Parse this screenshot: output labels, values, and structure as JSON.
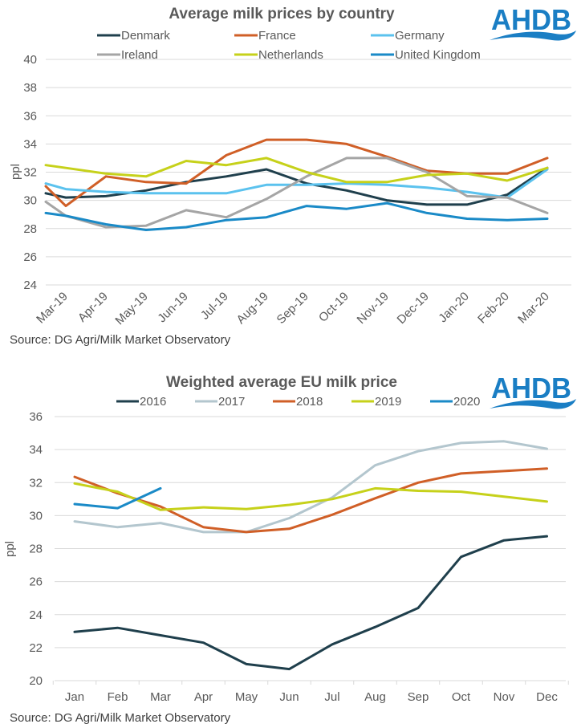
{
  "logo": {
    "text": "AHDB",
    "color": "#1a7ec4"
  },
  "chart_data": [
    {
      "type": "line",
      "title": "Average milk prices by country",
      "xlabel": "",
      "ylabel": "ppl",
      "ylim": [
        24,
        40
      ],
      "yticks": [
        "24",
        "26",
        "28",
        "30",
        "32",
        "34",
        "36",
        "38",
        "40"
      ],
      "grid": true,
      "legend_position": "top",
      "categories": [
        "Mar-19",
        "Apr-19",
        "May-19",
        "Jun-19",
        "Jul-19",
        "Aug-19",
        "Sep-19",
        "Oct-19",
        "Nov-19",
        "Dec-19",
        "Jan-20",
        "Feb-20",
        "Mar-20"
      ],
      "series": [
        {
          "name": "Denmark",
          "color": "#1f3f4c",
          "lead_in": 30.5,
          "values": [
            30.2,
            30.3,
            30.7,
            31.3,
            31.7,
            32.2,
            31.2,
            30.7,
            30.0,
            29.7,
            29.7,
            30.4,
            32.3
          ]
        },
        {
          "name": "France",
          "color": "#d05f27",
          "lead_in": 31.0,
          "values": [
            29.6,
            31.7,
            31.3,
            31.2,
            33.2,
            34.3,
            34.3,
            34.0,
            33.1,
            32.1,
            31.9,
            31.9,
            33.0
          ]
        },
        {
          "name": "Germany",
          "color": "#5bc2ee",
          "lead_in": 31.2,
          "values": [
            30.8,
            30.6,
            30.5,
            30.5,
            30.5,
            31.1,
            31.1,
            31.2,
            31.1,
            30.9,
            30.6,
            30.2,
            32.2
          ]
        },
        {
          "name": "Ireland",
          "color": "#a5a5a5",
          "lead_in": 29.9,
          "values": [
            28.9,
            28.1,
            28.2,
            29.3,
            28.8,
            30.1,
            31.7,
            33.0,
            33.0,
            32.0,
            30.3,
            30.2,
            29.1
          ]
        },
        {
          "name": "Netherlands",
          "color": "#c6d11a",
          "lead_in": 32.5,
          "values": [
            32.3,
            31.9,
            31.7,
            32.8,
            32.5,
            33.0,
            32.0,
            31.3,
            31.3,
            31.8,
            31.9,
            31.4,
            32.3
          ]
        },
        {
          "name": "United Kingdom",
          "color": "#1a8ac7",
          "lead_in": 29.1,
          "values": [
            28.9,
            28.3,
            27.9,
            28.1,
            28.6,
            28.8,
            29.6,
            29.4,
            29.8,
            29.1,
            28.7,
            28.6,
            28.7
          ]
        }
      ],
      "source": "Source:  DG Agri/Milk Market Observatory"
    },
    {
      "type": "line",
      "title": "Weighted average EU milk price",
      "xlabel": "",
      "ylabel": "ppl",
      "ylim": [
        20,
        36
      ],
      "yticks": [
        "20",
        "22",
        "24",
        "26",
        "28",
        "30",
        "32",
        "34",
        "36"
      ],
      "grid": true,
      "legend_position": "top",
      "categories": [
        "Jan",
        "Feb",
        "Mar",
        "Apr",
        "May",
        "Jun",
        "Jul",
        "Aug",
        "Sep",
        "Oct",
        "Nov",
        "Dec"
      ],
      "series": [
        {
          "name": "2016",
          "color": "#1f3f4c",
          "values": [
            22.95,
            23.2,
            22.75,
            22.3,
            21.0,
            20.7,
            22.2,
            23.25,
            24.4,
            27.5,
            28.5,
            28.75
          ]
        },
        {
          "name": "2017",
          "color": "#b3c6ce",
          "values": [
            29.65,
            29.3,
            29.55,
            29.0,
            29.0,
            29.85,
            31.1,
            33.05,
            33.9,
            34.4,
            34.5,
            34.05
          ]
        },
        {
          "name": "2018",
          "color": "#d05f27",
          "values": [
            32.35,
            31.35,
            30.55,
            29.3,
            29.0,
            29.2,
            30.05,
            31.05,
            32.0,
            32.55,
            32.7,
            32.85
          ]
        },
        {
          "name": "2019",
          "color": "#c6d11a",
          "values": [
            31.95,
            31.45,
            30.35,
            30.5,
            30.4,
            30.65,
            31.0,
            31.65,
            31.5,
            31.45,
            31.15,
            30.85
          ]
        },
        {
          "name": "2020",
          "color": "#1a8ac7",
          "values": [
            30.7,
            30.45,
            31.65
          ]
        }
      ],
      "source": "Source:  DG Agri/Milk Market Observatory"
    }
  ]
}
